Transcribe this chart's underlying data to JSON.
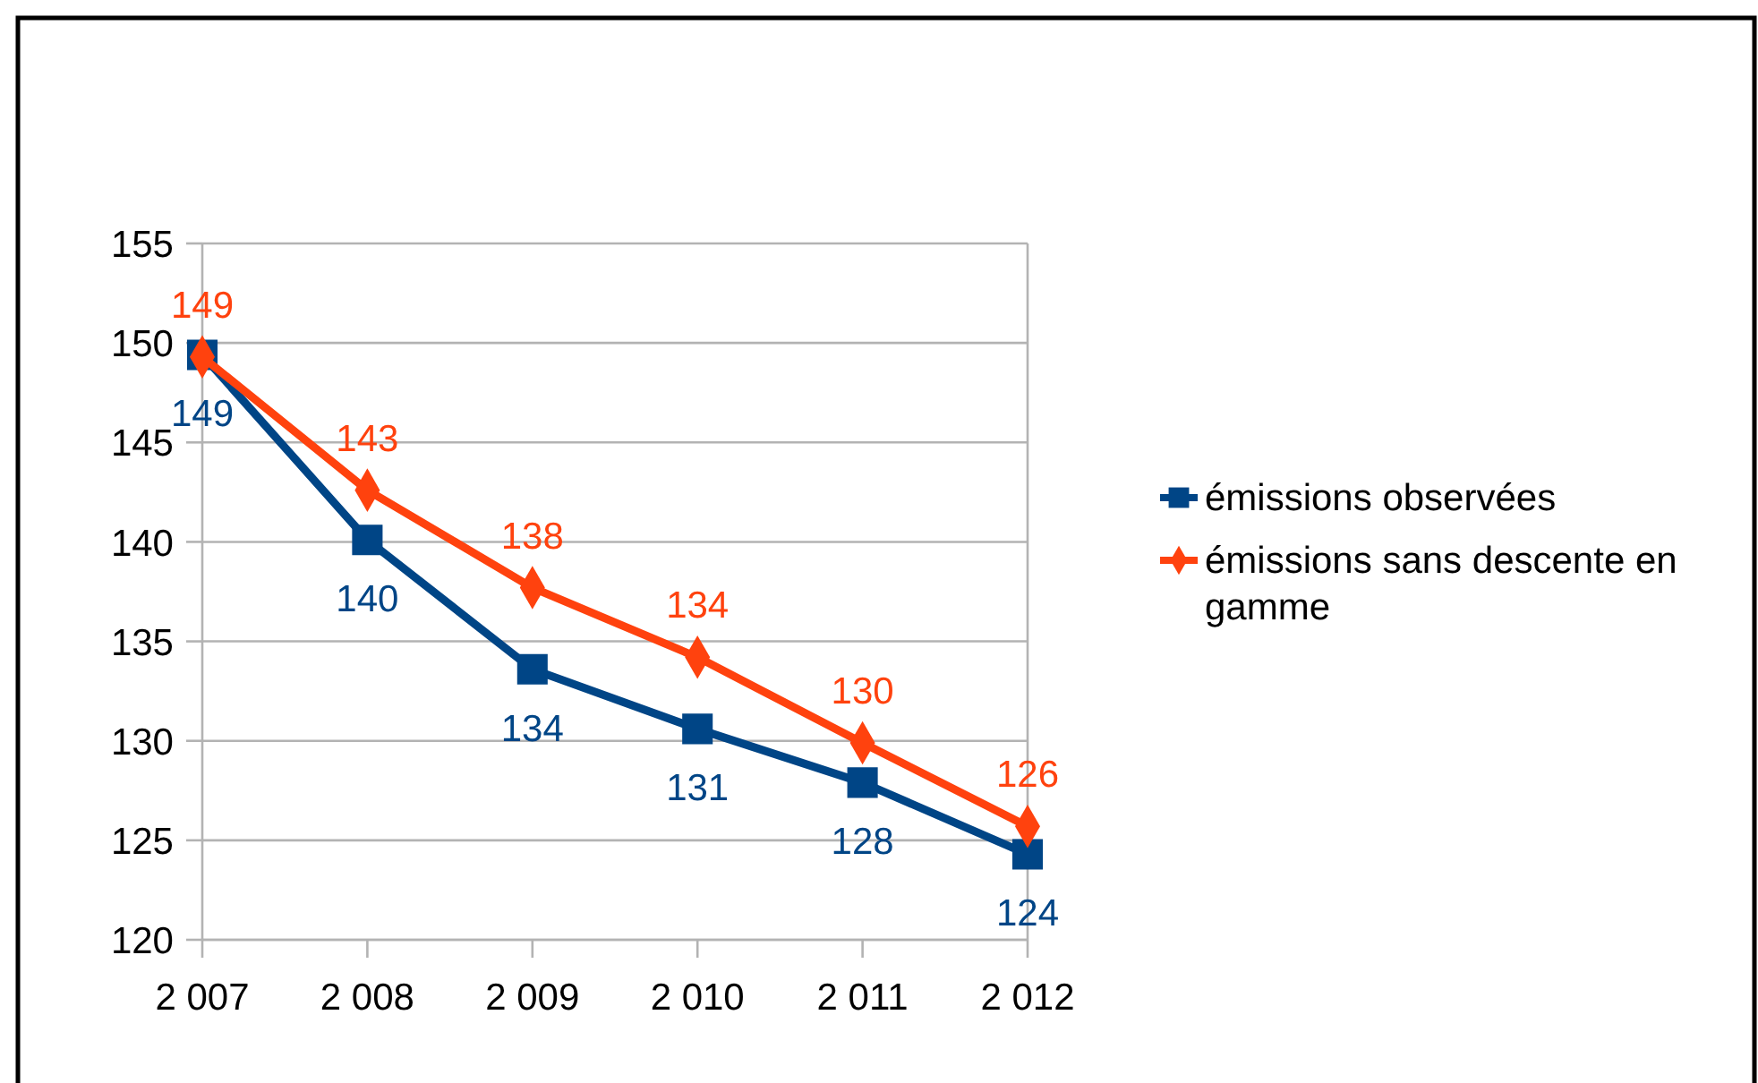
{
  "chart_data": {
    "type": "line",
    "categories": [
      "2 007",
      "2 008",
      "2 009",
      "2 010",
      "2 011",
      "2 012"
    ],
    "series": [
      {
        "name": "émissions observées",
        "color": "#004586",
        "marker": "square",
        "values": [
          149.4,
          140.1,
          133.6,
          130.6,
          127.9,
          124.3
        ],
        "value_labels": [
          "149",
          "140",
          "134",
          "131",
          "128",
          "124"
        ]
      },
      {
        "name": "émissions sans descente en gamme",
        "color": "#ff420e",
        "marker": "diamond",
        "values": [
          149.3,
          142.6,
          137.7,
          134.2,
          129.9,
          125.7
        ],
        "value_labels": [
          "149",
          "143",
          "138",
          "134",
          "130",
          "126"
        ]
      }
    ],
    "ylim": [
      120,
      155
    ],
    "yticks": [
      120,
      125,
      130,
      135,
      140,
      145,
      150,
      155
    ],
    "grid": "y",
    "legend": "right"
  }
}
